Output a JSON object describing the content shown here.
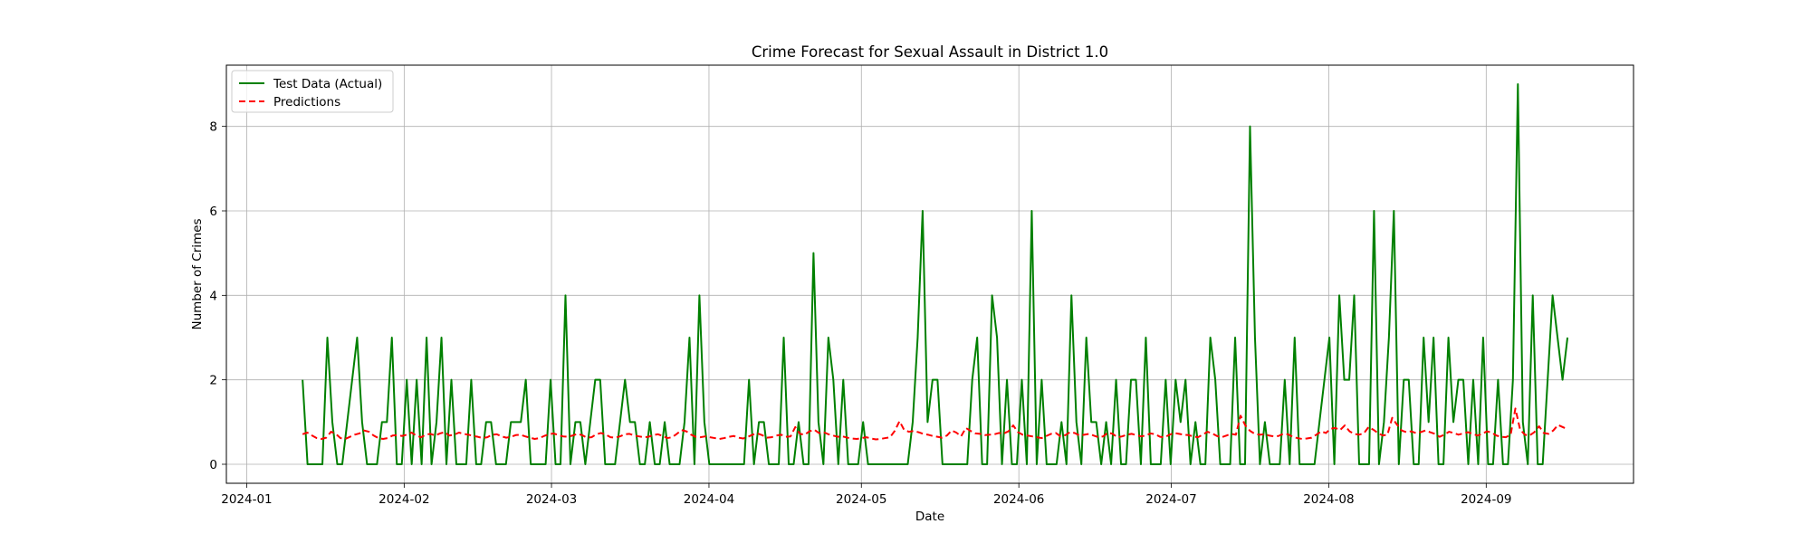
{
  "chart_data": {
    "type": "line",
    "title": "Crime Forecast for Sexual Assault in District 1.0",
    "xlabel": "Date",
    "ylabel": "Number of Crimes",
    "x_ticks": [
      "2024-01",
      "2024-02",
      "2024-03",
      "2024-04",
      "2024-05",
      "2024-06",
      "2024-07",
      "2024-08",
      "2024-09"
    ],
    "y_ticks": [
      0,
      2,
      4,
      6,
      8
    ],
    "xlim": [
      "2023-12-28",
      "2024-09-30"
    ],
    "ylim": [
      -0.45,
      9.45
    ],
    "grid": true,
    "legend_position": "top-left",
    "series": [
      {
        "name": "Test Data (Actual)",
        "color": "#008000",
        "style": "solid",
        "start": "2024-01-12",
        "end": "2024-09-17",
        "values": [
          2,
          0,
          0,
          0,
          0,
          3,
          1,
          0,
          0,
          1,
          2,
          3,
          1,
          0,
          0,
          0,
          1,
          1,
          3,
          0,
          0,
          2,
          0,
          2,
          0,
          3,
          0,
          1,
          3,
          0,
          2,
          0,
          0,
          0,
          2,
          0,
          0,
          1,
          1,
          0,
          0,
          0,
          1,
          1,
          1,
          2,
          0,
          0,
          0,
          0,
          2,
          0,
          0,
          4,
          0,
          1,
          1,
          0,
          1,
          2,
          2,
          0,
          0,
          0,
          1,
          2,
          1,
          1,
          0,
          0,
          1,
          0,
          0,
          1,
          0,
          0,
          0,
          1,
          3,
          0,
          4,
          1,
          0,
          0,
          0,
          0,
          0,
          0,
          0,
          0,
          2,
          0,
          1,
          1,
          0,
          0,
          0,
          3,
          0,
          0,
          1,
          0,
          0,
          5,
          1,
          0,
          3,
          2,
          0,
          2,
          0,
          0,
          0,
          1,
          0,
          0,
          0,
          0,
          0,
          0,
          0,
          0,
          0,
          1,
          3,
          6,
          1,
          2,
          2,
          0,
          0,
          0,
          0,
          0,
          0,
          2,
          3,
          0,
          0,
          4,
          3,
          0,
          2,
          0,
          0,
          2,
          0,
          6,
          0,
          2,
          0,
          0,
          0,
          1,
          0,
          4,
          1,
          0,
          3,
          1,
          1,
          0,
          1,
          0,
          2,
          0,
          0,
          2,
          2,
          0,
          3,
          0,
          0,
          0,
          2,
          0,
          2,
          1,
          2,
          0,
          1,
          0,
          0,
          3,
          2,
          0,
          0,
          0,
          3,
          0,
          0,
          8,
          3,
          0,
          1,
          0,
          0,
          0,
          2,
          0,
          3,
          0,
          0,
          0,
          0,
          1,
          2,
          3,
          0,
          4,
          2,
          2,
          4,
          0,
          0,
          0,
          6,
          0,
          1,
          3,
          6,
          0,
          2,
          2,
          0,
          0,
          3,
          1,
          3,
          0,
          0,
          3,
          1,
          2,
          2,
          0,
          2,
          0,
          3,
          0,
          0,
          2,
          0,
          0,
          2,
          9,
          1,
          0,
          4,
          0,
          0,
          2,
          4,
          3,
          2,
          3
        ]
      },
      {
        "name": "Predictions",
        "color": "#ff0000",
        "style": "dashed",
        "start": "2024-01-12",
        "end": "2024-09-17",
        "values": [
          0.71,
          0.75,
          0.68,
          0.62,
          0.6,
          0.63,
          0.77,
          0.72,
          0.62,
          0.6,
          0.65,
          0.7,
          0.73,
          0.8,
          0.77,
          0.68,
          0.62,
          0.6,
          0.62,
          0.68,
          0.69,
          0.67,
          0.7,
          0.75,
          0.68,
          0.64,
          0.7,
          0.72,
          0.68,
          0.73,
          0.76,
          0.68,
          0.7,
          0.75,
          0.72,
          0.7,
          0.67,
          0.65,
          0.62,
          0.64,
          0.7,
          0.71,
          0.66,
          0.63,
          0.65,
          0.69,
          0.7,
          0.66,
          0.63,
          0.6,
          0.62,
          0.67,
          0.71,
          0.73,
          0.69,
          0.66,
          0.65,
          0.68,
          0.72,
          0.69,
          0.63,
          0.64,
          0.71,
          0.74,
          0.7,
          0.64,
          0.63,
          0.66,
          0.71,
          0.72,
          0.68,
          0.66,
          0.64,
          0.65,
          0.69,
          0.71,
          0.67,
          0.62,
          0.64,
          0.72,
          0.81,
          0.78,
          0.7,
          0.65,
          0.64,
          0.66,
          0.64,
          0.62,
          0.6,
          0.62,
          0.65,
          0.67,
          0.63,
          0.61,
          0.65,
          0.7,
          0.73,
          0.69,
          0.63,
          0.64,
          0.68,
          0.7,
          0.65,
          0.66,
          0.88,
          0.72,
          0.7,
          0.78,
          0.82,
          0.74,
          0.76,
          0.71,
          0.68,
          0.65,
          0.66,
          0.63,
          0.61,
          0.6,
          0.62,
          0.64,
          0.61,
          0.59,
          0.6,
          0.62,
          0.64,
          0.79,
          1.02,
          0.81,
          0.77,
          0.79,
          0.76,
          0.72,
          0.7,
          0.67,
          0.65,
          0.63,
          0.68,
          0.8,
          0.75,
          0.66,
          0.86,
          0.79,
          0.73,
          0.72,
          0.69,
          0.7,
          0.71,
          0.74,
          0.73,
          0.78,
          0.92,
          0.76,
          0.7,
          0.68,
          0.66,
          0.64,
          0.62,
          0.67,
          0.72,
          0.74,
          0.66,
          0.69,
          0.76,
          0.74,
          0.68,
          0.7,
          0.72,
          0.68,
          0.64,
          0.66,
          0.75,
          0.72,
          0.64,
          0.66,
          0.7,
          0.72,
          0.69,
          0.66,
          0.68,
          0.73,
          0.71,
          0.65,
          0.64,
          0.7,
          0.74,
          0.72,
          0.7,
          0.69,
          0.66,
          0.64,
          0.7,
          0.77,
          0.73,
          0.67,
          0.64,
          0.68,
          0.72,
          0.7,
          1.15,
          0.92,
          0.79,
          0.72,
          0.7,
          0.71,
          0.68,
          0.66,
          0.67,
          0.72,
          0.71,
          0.65,
          0.62,
          0.6,
          0.61,
          0.63,
          0.7,
          0.78,
          0.74,
          0.84,
          0.86,
          0.81,
          0.92,
          0.78,
          0.72,
          0.7,
          0.73,
          0.88,
          0.82,
          0.74,
          0.68,
          0.7,
          1.1,
          0.94,
          0.8,
          0.76,
          0.78,
          0.74,
          0.76,
          0.8,
          0.76,
          0.72,
          0.65,
          0.7,
          0.77,
          0.74,
          0.7,
          0.73,
          0.76,
          0.72,
          0.68,
          0.72,
          0.78,
          0.75,
          0.68,
          0.65,
          0.64,
          0.7,
          1.32,
          0.82,
          0.7,
          0.68,
          0.76,
          0.9,
          0.74,
          0.72,
          0.8,
          0.93,
          0.88,
          0.83
        ]
      }
    ]
  }
}
